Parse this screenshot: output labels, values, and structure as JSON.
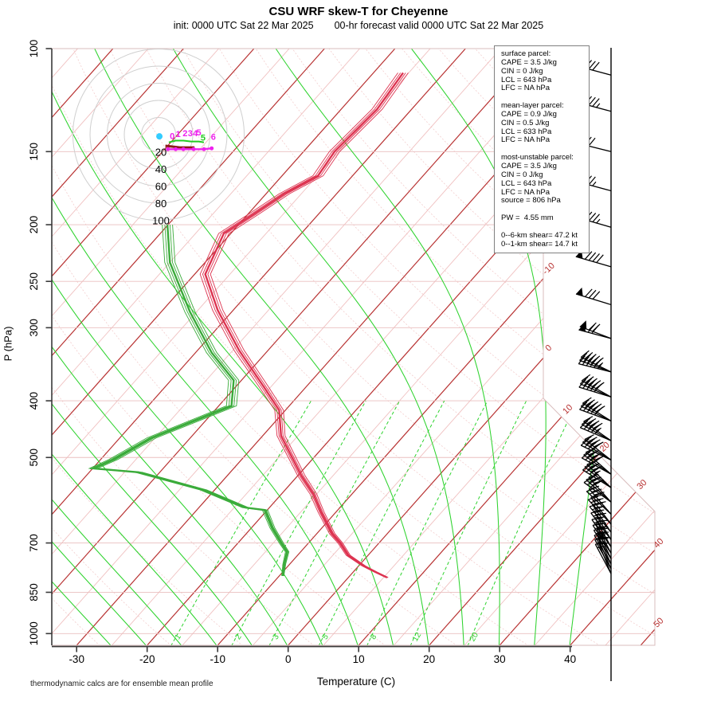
{
  "title": "CSU WRF skew-T for Cheyenne",
  "subtitle": {
    "init": "init: 0000 UTC Sat 22 Mar 2025",
    "valid": "00-hr forecast valid 0000 UTC Sat 22 Mar 2025"
  },
  "footer_note": "thermodynamic calcs are for ensemble mean profile",
  "axes": {
    "x_label": "Temperature (C)",
    "y_label": "P (hPa)",
    "x_ticks": [
      -30,
      -20,
      -10,
      0,
      10,
      20,
      30,
      40
    ],
    "y_ticks": [
      100,
      150,
      200,
      250,
      300,
      400,
      500,
      700,
      850,
      1000
    ]
  },
  "info_box": {
    "sections": [
      {
        "lines": [
          "surface parcel:",
          "CAPE = 3.5 J/kg",
          "CIN = 0 J/kg",
          "LCL = 643 hPa",
          "LFC = NA hPa"
        ]
      },
      {
        "lines": [
          "mean-layer parcel:",
          "CAPE = 0.9 J/kg",
          "CIN = 0.5 J/kg",
          "LCL = 633 hPa",
          "LFC = NA hPa"
        ]
      },
      {
        "lines": [
          "most-unstable parcel:",
          "CAPE = 3.5 J/kg",
          "CIN = 0 J/kg",
          "LCL = 643 hPa",
          "LFC = NA hPa",
          "source = 806 hPa"
        ]
      },
      {
        "lines": [
          "PW =  4.55 mm"
        ]
      },
      {
        "lines": [
          "0--6-km shear= 47.2 kt",
          "0--1-km shear= 14.7 kt"
        ]
      }
    ]
  },
  "colors": {
    "temperature": "#dd3350",
    "dewpoint": "#3aab3a",
    "adiabat_green": "#2ed32e",
    "isotherm_major": "#b83232",
    "isotherm_minor": "#f0c0c0",
    "dry_adiabat": "#f3cdcd",
    "pressure_line": "#eabfbf",
    "border_pink": "#d8bcbc",
    "hodo_ring": "#cfcfcf",
    "hodo_magenta": "#ee22ee",
    "hodo_green": "#22cc22",
    "hodo_darkred": "#8b1a1a",
    "hodo_cyan": "#33ccff",
    "axis_dark": "#3a3a3a",
    "barb": "#000000"
  },
  "chart_data": {
    "type": "skewt",
    "title": "CSU WRF skew-T for Cheyenne",
    "pressure_range_hPa": [
      100,
      1050
    ],
    "surface_pressure_hPa": 806,
    "temperature_profile": [
      {
        "p": 802,
        "t": 5.5
      },
      {
        "p": 785,
        "t": 3.2
      },
      {
        "p": 766,
        "t": 0.7
      },
      {
        "p": 735,
        "t": -2.8
      },
      {
        "p": 700,
        "t": -5.5
      },
      {
        "p": 675,
        "t": -7.8
      },
      {
        "p": 620,
        "t": -12.1
      },
      {
        "p": 577,
        "t": -15.5
      },
      {
        "p": 537,
        "t": -19.5
      },
      {
        "p": 459,
        "t": -27.4
      },
      {
        "p": 415,
        "t": -30.9
      },
      {
        "p": 380,
        "t": -35.8
      },
      {
        "p": 328,
        "t": -44.1
      },
      {
        "p": 280,
        "t": -52.2
      },
      {
        "p": 243,
        "t": -58.5
      },
      {
        "p": 207,
        "t": -61.0
      },
      {
        "p": 192,
        "t": -59.2
      },
      {
        "p": 177,
        "t": -57.4
      },
      {
        "p": 165,
        "t": -54.9
      },
      {
        "p": 150,
        "t": -55.6
      },
      {
        "p": 127,
        "t": -54.9
      },
      {
        "p": 110,
        "t": -55.8
      }
    ],
    "dewpoint_profile": [
      {
        "p": 797,
        "t": -9.5
      },
      {
        "p": 760,
        "t": -10.8
      },
      {
        "p": 725,
        "t": -11.9
      },
      {
        "p": 702,
        "t": -13.7
      },
      {
        "p": 660,
        "t": -17.0
      },
      {
        "p": 615,
        "t": -20.3
      },
      {
        "p": 609,
        "t": -23.4
      },
      {
        "p": 568,
        "t": -31.6
      },
      {
        "p": 530,
        "t": -43.0
      },
      {
        "p": 522,
        "t": -49.9
      },
      {
        "p": 504,
        "t": -48.2
      },
      {
        "p": 463,
        "t": -45.5
      },
      {
        "p": 408,
        "t": -38.2
      },
      {
        "p": 369,
        "t": -41.1
      },
      {
        "p": 331,
        "t": -47.7
      },
      {
        "p": 282,
        "t": -55.9
      },
      {
        "p": 232,
        "t": -65.0
      },
      {
        "p": 200,
        "t": -70.1
      }
    ],
    "ensemble_members": 5,
    "isotherms": {
      "start": -120,
      "end": 55,
      "step": 5,
      "major_step": 10
    },
    "isotherm_edge_labels": [
      -10,
      0,
      10,
      20,
      30,
      40,
      50
    ],
    "dry_adiabats_theta_C": {
      "start": -30,
      "end": 200,
      "step": 10
    },
    "moist_adiabats_surfaceT_C": {
      "start": -25,
      "end": 40,
      "step": 5
    },
    "mixing_ratio_lines_gkg": [
      1,
      2,
      3,
      5,
      8,
      12,
      20
    ],
    "pressure_lines_hPa": [
      150,
      200,
      250,
      300,
      400,
      500,
      700,
      850,
      1000
    ],
    "wind_barbs": [
      {
        "p": 111,
        "tilt": 15,
        "fl": 1,
        "fu": 3,
        "ha": 0,
        "n": 1
      },
      {
        "p": 128,
        "tilt": 15,
        "fl": 1,
        "fu": 3,
        "ha": 1,
        "n": 1
      },
      {
        "p": 150,
        "tilt": 14,
        "fl": 1,
        "fu": 2,
        "ha": 0,
        "n": 1
      },
      {
        "p": 175,
        "tilt": 15,
        "fl": 1,
        "fu": 2,
        "ha": 1,
        "n": 1
      },
      {
        "p": 202,
        "tilt": 16,
        "fl": 1,
        "fu": 3,
        "ha": 1,
        "n": 1
      },
      {
        "p": 236,
        "tilt": 16,
        "fl": 1,
        "fu": 4,
        "ha": 0,
        "n": 1
      },
      {
        "p": 274,
        "tilt": 17,
        "fl": 1,
        "fu": 3,
        "ha": 0,
        "n": 1
      },
      {
        "p": 313,
        "tilt": 18,
        "fl": 1,
        "fu": 2,
        "ha": 0,
        "n": 2
      },
      {
        "p": 357,
        "tilt": 20,
        "fl": 0,
        "fu": 5,
        "ha": 1,
        "n": 3
      },
      {
        "p": 394,
        "tilt": 23,
        "fl": 0,
        "fu": 5,
        "ha": 0,
        "n": 3
      },
      {
        "p": 433,
        "tilt": 26,
        "fl": 0,
        "fu": 5,
        "ha": 0,
        "n": 3
      },
      {
        "p": 468,
        "tilt": 29,
        "fl": 0,
        "fu": 4,
        "ha": 1,
        "n": 3
      },
      {
        "p": 505,
        "tilt": 32,
        "fl": 0,
        "fu": 4,
        "ha": 0,
        "n": 3
      },
      {
        "p": 534,
        "tilt": 35,
        "fl": 0,
        "fu": 4,
        "ha": 0,
        "n": 3
      },
      {
        "p": 563,
        "tilt": 38,
        "fl": 0,
        "fu": 3,
        "ha": 1,
        "n": 3
      },
      {
        "p": 596,
        "tilt": 42,
        "fl": 0,
        "fu": 3,
        "ha": 0,
        "n": 3
      },
      {
        "p": 625,
        "tilt": 46,
        "fl": 0,
        "fu": 3,
        "ha": 0,
        "n": 2
      },
      {
        "p": 650,
        "tilt": 50,
        "fl": 0,
        "fu": 3,
        "ha": 0,
        "n": 2
      },
      {
        "p": 671,
        "tilt": 53,
        "fl": 0,
        "fu": 2,
        "ha": 1,
        "n": 2
      },
      {
        "p": 691,
        "tilt": 56,
        "fl": 0,
        "fu": 2,
        "ha": 1,
        "n": 2
      },
      {
        "p": 711,
        "tilt": 58,
        "fl": 0,
        "fu": 2,
        "ha": 0,
        "n": 2
      },
      {
        "p": 729,
        "tilt": 60,
        "fl": 0,
        "fu": 2,
        "ha": 0,
        "n": 2
      },
      {
        "p": 745,
        "tilt": 62,
        "fl": 0,
        "fu": 2,
        "ha": 1,
        "n": 2
      },
      {
        "p": 761,
        "tilt": 63,
        "fl": 0,
        "fu": 2,
        "ha": 0,
        "n": 2
      },
      {
        "p": 775,
        "tilt": 64,
        "fl": 0,
        "fu": 1,
        "ha": 1,
        "n": 2
      },
      {
        "p": 790,
        "tilt": 65,
        "fl": 0,
        "fu": 1,
        "ha": 1,
        "n": 2
      }
    ],
    "hodograph": {
      "ring_interval_kt": 20,
      "rings": [
        20,
        40,
        60,
        80,
        100
      ],
      "origin_dot_uv": [
        1,
        -2
      ],
      "trace_green_uv": [
        [
          12,
          -9
        ],
        [
          20,
          -7
        ],
        [
          29,
          -7
        ],
        [
          38,
          -8
        ],
        [
          47,
          -8
        ],
        [
          53,
          -9
        ]
      ],
      "trace_magenta_uv": [
        [
          11,
          -17
        ],
        [
          20,
          -17
        ],
        [
          29,
          -17
        ],
        [
          41,
          -17
        ],
        [
          53,
          -17
        ],
        [
          62,
          -16
        ]
      ],
      "trace_darkred_uv": [
        [
          8,
          -13
        ],
        [
          16,
          -14
        ],
        [
          25,
          -15
        ],
        [
          34,
          -15
        ],
        [
          42,
          -15
        ]
      ],
      "km_labels": [
        {
          "t": "0",
          "u": 16,
          "v": -5,
          "c": "magenta"
        },
        {
          "t": "1",
          "u": 23,
          "v": -3,
          "c": "magenta"
        },
        {
          "t": "2",
          "u": 31,
          "v": -2,
          "c": "magenta"
        },
        {
          "t": "3",
          "u": 37,
          "v": -2,
          "c": "magenta"
        },
        {
          "t": "4",
          "u": 43,
          "v": -2,
          "c": "magenta"
        },
        {
          "t": "5",
          "u": 47,
          "v": -1,
          "c": "magenta"
        },
        {
          "t": "5",
          "u": 52,
          "v": -7,
          "c": "green"
        },
        {
          "t": "6",
          "u": 64,
          "v": -6,
          "c": "magenta"
        }
      ]
    }
  }
}
